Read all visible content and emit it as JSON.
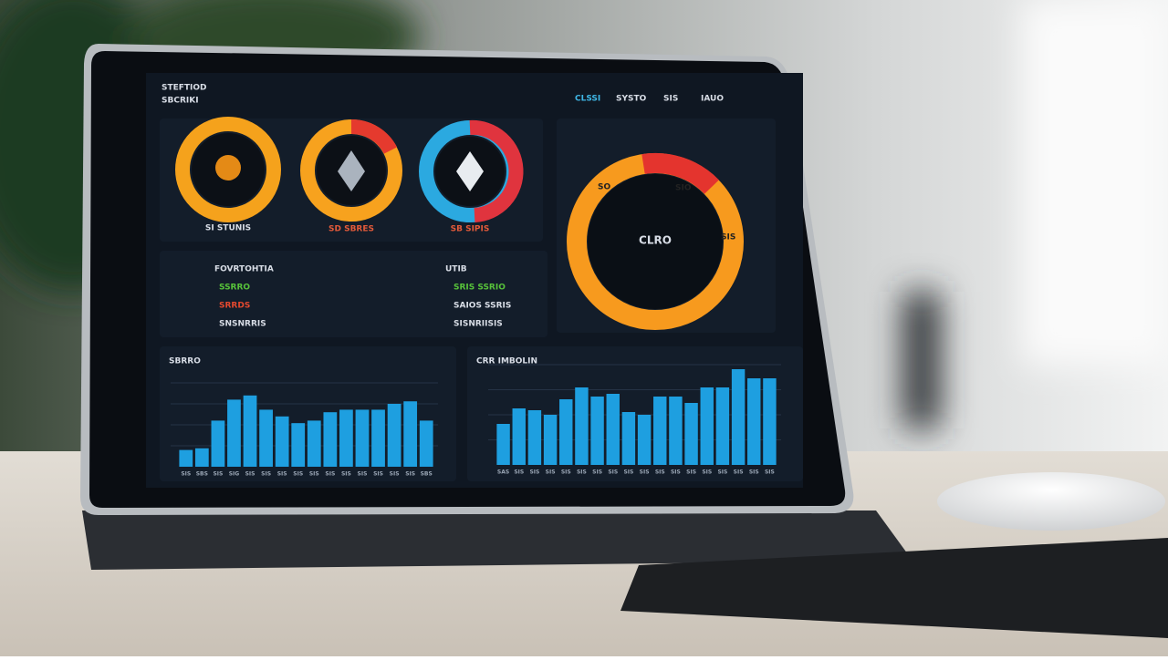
{
  "header": {
    "title": "STEFTIOD",
    "subtitle": "SBCRIKI"
  },
  "nav": [
    "CLSSI",
    "SYSTO",
    "SIS",
    "IAUO"
  ],
  "coins": [
    {
      "label": "SI STUNIS"
    },
    {
      "label": "SD SBRES"
    },
    {
      "label": "SB SIPIS"
    }
  ],
  "donut": {
    "center": "CLRO",
    "left": "SO",
    "right": "SIS",
    "top": "SIO"
  },
  "info": {
    "left": {
      "title": "FOVRTOHTIA",
      "rows": [
        "SSRRO",
        "SRRDS",
        "SNSNRRIS"
      ]
    },
    "right": {
      "title": "UTIB",
      "rows": [
        "SRIS SSRIO",
        "SAIOS SSRIS",
        "SISNRIISIS"
      ]
    }
  },
  "chart_data": [
    {
      "type": "bar",
      "title": "SBRRO",
      "color": "#1e9fe0",
      "ylim": [
        0,
        100
      ],
      "categories": [
        "SIS",
        "SBS",
        "SIS",
        "SIG",
        "SIS",
        "SIS",
        "SIS",
        "SIS",
        "SIS",
        "SIS",
        "SIS",
        "SIS",
        "SIS",
        "SIS",
        "SIS",
        "SBS"
      ],
      "values": [
        20,
        22,
        55,
        80,
        85,
        68,
        60,
        52,
        55,
        65,
        68,
        68,
        68,
        75,
        78,
        55
      ]
    },
    {
      "type": "bar",
      "title": "CRR IMBOLIN",
      "color": "#1e9fe0",
      "ylim": [
        0,
        110
      ],
      "categories": [
        "SAS",
        "SIS",
        "SIS",
        "SIS",
        "SIS",
        "SIS",
        "SIS",
        "SIS",
        "SIS",
        "SIS",
        "SIS",
        "SIS",
        "SIS",
        "SIS",
        "SIS",
        "SIS",
        "SIS",
        "SIS"
      ],
      "values": [
        45,
        62,
        60,
        55,
        72,
        85,
        75,
        78,
        58,
        55,
        75,
        75,
        68,
        85,
        85,
        105,
        95,
        95
      ]
    }
  ]
}
